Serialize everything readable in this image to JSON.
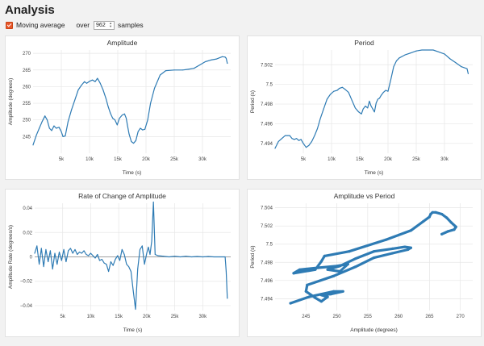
{
  "page": {
    "title": "Analysis"
  },
  "controls": {
    "moving_average_label": "Moving average",
    "moving_average_checked": true,
    "over_label": "over",
    "samples_value": "962",
    "samples_label": "samples"
  },
  "colors": {
    "accent": "#e8562a",
    "series": "#2e7bb4",
    "grid": "#e6e6e6"
  },
  "chart_data": [
    {
      "type": "line",
      "title": "Amplitude",
      "xlabel": "Time (s)",
      "ylabel": "Amplitude (degrees)",
      "xlim": [
        0,
        35000
      ],
      "ylim": [
        240,
        271
      ],
      "x_ticks": [
        5000,
        10000,
        15000,
        20000,
        25000,
        30000
      ],
      "x_tick_labels": [
        "5k",
        "10k",
        "15k",
        "20k",
        "25k",
        "30k"
      ],
      "y_ticks": [
        245,
        250,
        255,
        260,
        265,
        270
      ],
      "y_tick_labels": [
        "245",
        "250",
        "255",
        "260",
        "265",
        "270"
      ],
      "grid": true,
      "x": [
        0,
        600,
        1100,
        1600,
        2100,
        2500,
        2900,
        3300,
        3700,
        4100,
        4600,
        5000,
        5300,
        5700,
        6200,
        6800,
        7400,
        8000,
        8600,
        9100,
        9500,
        10000,
        10500,
        11000,
        11400,
        11900,
        12400,
        12900,
        13300,
        13700,
        14100,
        14500,
        14900,
        15300,
        15800,
        16200,
        16500,
        16700,
        17000,
        17400,
        17800,
        18200,
        18600,
        19000,
        19400,
        19800,
        20300,
        20800,
        21500,
        22500,
        23500,
        25000,
        26500,
        27500,
        28500,
        29500,
        30500,
        31500,
        32500,
        33500,
        34000,
        34200,
        34400
      ],
      "y": [
        242.5,
        245.5,
        247.5,
        249.5,
        251.2,
        250.0,
        247.5,
        246.8,
        248.2,
        247.5,
        247.8,
        246.5,
        245.0,
        245.2,
        249.5,
        253.0,
        256.0,
        259.0,
        260.5,
        261.5,
        261.0,
        261.6,
        262.0,
        261.5,
        262.5,
        261.0,
        259.0,
        256.5,
        254.0,
        252.0,
        250.5,
        250.0,
        248.5,
        250.5,
        251.5,
        251.8,
        250.5,
        248.5,
        245.8,
        243.5,
        243.0,
        243.8,
        246.5,
        247.5,
        247.0,
        247.2,
        250.0,
        255.0,
        259.5,
        263.5,
        264.8,
        265.0,
        265.0,
        265.2,
        265.5,
        266.5,
        267.5,
        268.0,
        268.3,
        269.0,
        268.9,
        268.5,
        267.0
      ]
    },
    {
      "type": "line",
      "title": "Period",
      "xlabel": "Time (s)",
      "ylabel": "Period (s)",
      "xlim": [
        0,
        35000
      ],
      "ylim": [
        7.493,
        7.5035
      ],
      "x_ticks": [
        5000,
        10000,
        15000,
        20000,
        25000,
        30000
      ],
      "x_tick_labels": [
        "5k",
        "10k",
        "15k",
        "20k",
        "25k",
        "30k"
      ],
      "y_ticks": [
        7.494,
        7.496,
        7.498,
        7.5,
        7.502
      ],
      "y_tick_labels": [
        "7.494",
        "7.496",
        "7.498",
        "7.5",
        "7.502"
      ],
      "grid": true,
      "x": [
        0,
        600,
        1200,
        1800,
        2200,
        2600,
        3000,
        3400,
        3800,
        4200,
        4600,
        5000,
        5500,
        6000,
        6500,
        7000,
        7500,
        8000,
        8600,
        9200,
        9800,
        10400,
        11000,
        11400,
        11900,
        12400,
        13000,
        13600,
        14200,
        14800,
        15300,
        15600,
        16000,
        16400,
        16700,
        17000,
        17300,
        17600,
        17900,
        18200,
        18500,
        18800,
        19200,
        19600,
        20000,
        20500,
        21000,
        21500,
        22000,
        23000,
        24000,
        25000,
        26000,
        27000,
        28000,
        29000,
        30000,
        31000,
        32000,
        33000,
        34000,
        34200
      ],
      "y": [
        7.4935,
        7.4942,
        7.4945,
        7.4948,
        7.4948,
        7.4948,
        7.4945,
        7.4944,
        7.4945,
        7.4943,
        7.4944,
        7.494,
        7.4936,
        7.4938,
        7.4942,
        7.4948,
        7.4955,
        7.4965,
        7.4975,
        7.4985,
        7.499,
        7.4993,
        7.4994,
        7.4996,
        7.4997,
        7.4995,
        7.4992,
        7.4984,
        7.4976,
        7.4972,
        7.497,
        7.4975,
        7.4978,
        7.4976,
        7.4983,
        7.4978,
        7.4975,
        7.4972,
        7.4981,
        7.4985,
        7.4986,
        7.4989,
        7.4992,
        7.4994,
        7.4993,
        7.5005,
        7.5018,
        7.5024,
        7.5027,
        7.503,
        7.5032,
        7.5034,
        7.5035,
        7.5035,
        7.5035,
        7.5033,
        7.5031,
        7.5026,
        7.5022,
        7.5018,
        7.5016,
        7.5011
      ]
    },
    {
      "type": "line",
      "title": "Rate of Change of Amplitude",
      "xlabel": "Time (s)",
      "ylabel": "Amplitude Rate (degrees/s)",
      "xlim": [
        0,
        35000
      ],
      "ylim": [
        -0.044,
        0.044
      ],
      "x_ticks": [
        5000,
        10000,
        15000,
        20000,
        25000,
        30000
      ],
      "x_tick_labels": [
        "5k",
        "10k",
        "15k",
        "20k",
        "25k",
        "30k"
      ],
      "y_ticks": [
        -0.04,
        -0.02,
        0,
        0.02,
        0.04
      ],
      "y_tick_labels": [
        "−0.04",
        "−0.02",
        "0",
        "0.02",
        "0.04"
      ],
      "grid": true,
      "x": [
        0,
        400,
        800,
        1200,
        1600,
        2000,
        2400,
        2800,
        3200,
        3600,
        4000,
        4400,
        4800,
        5200,
        5600,
        6000,
        6400,
        6800,
        7200,
        7600,
        8000,
        8400,
        8800,
        9200,
        9600,
        10000,
        10400,
        10800,
        11200,
        11600,
        12000,
        12400,
        12800,
        13200,
        13600,
        14000,
        14400,
        14800,
        15200,
        15600,
        16000,
        16400,
        16800,
        17200,
        17600,
        18000,
        18400,
        18800,
        19200,
        19600,
        20000,
        20300,
        20600,
        20900,
        21200,
        21500,
        22000,
        23000,
        24000,
        25000,
        26000,
        27000,
        28000,
        29000,
        30000,
        31000,
        32000,
        33000,
        34000,
        34200,
        34400
      ],
      "y": [
        0.003,
        0.009,
        -0.006,
        0.007,
        -0.008,
        0.006,
        -0.004,
        0.005,
        -0.01,
        0.003,
        -0.006,
        0.004,
        -0.003,
        0.006,
        -0.004,
        0.005,
        0.007,
        0.003,
        0.006,
        0.002,
        0.004,
        0.003,
        0.005,
        0.002,
        0.001,
        0.003,
        0.001,
        -0.001,
        0.002,
        -0.003,
        -0.002,
        -0.005,
        -0.006,
        -0.012,
        -0.004,
        -0.007,
        -0.002,
        0.001,
        -0.003,
        0.006,
        0.002,
        -0.006,
        -0.008,
        -0.012,
        -0.028,
        -0.043,
        -0.01,
        0.006,
        0.009,
        -0.006,
        0.003,
        0.008,
        0.002,
        0.013,
        0.045,
        0.002,
        0.001,
        0.0005,
        0.0,
        0.0005,
        0.0,
        0.0005,
        0.0,
        0.0003,
        0.0,
        0.0003,
        0.0,
        0.0,
        0.0,
        -0.012,
        -0.034
      ]
    },
    {
      "type": "scatter",
      "title": "Amplitude vs Period",
      "xlabel": "Amplitude (degrees)",
      "ylabel": "Period (s)",
      "xlim": [
        240,
        272
      ],
      "ylim": [
        7.4927,
        7.5045
      ],
      "x_ticks": [
        245,
        250,
        255,
        260,
        265,
        270
      ],
      "x_tick_labels": [
        "245",
        "250",
        "255",
        "260",
        "265",
        "270"
      ],
      "y_ticks": [
        7.494,
        7.496,
        7.498,
        7.5,
        7.502,
        7.504
      ],
      "y_tick_labels": [
        "7.494",
        "7.496",
        "7.498",
        "7.5",
        "7.502",
        "7.504"
      ],
      "grid": true,
      "x": [
        242.5,
        245.5,
        247.5,
        249.5,
        251.0,
        249.0,
        247.5,
        248.5,
        247.5,
        246.5,
        245.0,
        245.2,
        249.5,
        253.0,
        256.0,
        259.0,
        261.5,
        262.0,
        261.0,
        259.0,
        256.0,
        253.0,
        250.5,
        248.5,
        250.5,
        251.8,
        250.0,
        247.0,
        244.0,
        243.0,
        246.5,
        247.5,
        248.0,
        252.0,
        258.0,
        262.0,
        264.0,
        265.0,
        265.2,
        265.5,
        266.0,
        267.0,
        267.8,
        268.5,
        269.3,
        269.0,
        268.0,
        267.0
      ],
      "y": [
        7.4935,
        7.4942,
        7.4945,
        7.4948,
        7.4948,
        7.4945,
        7.4944,
        7.4942,
        7.4937,
        7.4941,
        7.4948,
        7.4955,
        7.4965,
        7.4975,
        7.4985,
        7.499,
        7.4994,
        7.4996,
        7.4997,
        7.4995,
        7.4992,
        7.4984,
        7.4976,
        7.4972,
        7.497,
        7.4978,
        7.4976,
        7.4974,
        7.4972,
        7.4968,
        7.4972,
        7.4981,
        7.4987,
        7.4992,
        7.5005,
        7.5015,
        7.5025,
        7.503,
        7.5033,
        7.5035,
        7.5035,
        7.5033,
        7.5029,
        7.5024,
        7.5019,
        7.5016,
        7.5014,
        7.5011
      ]
    }
  ]
}
